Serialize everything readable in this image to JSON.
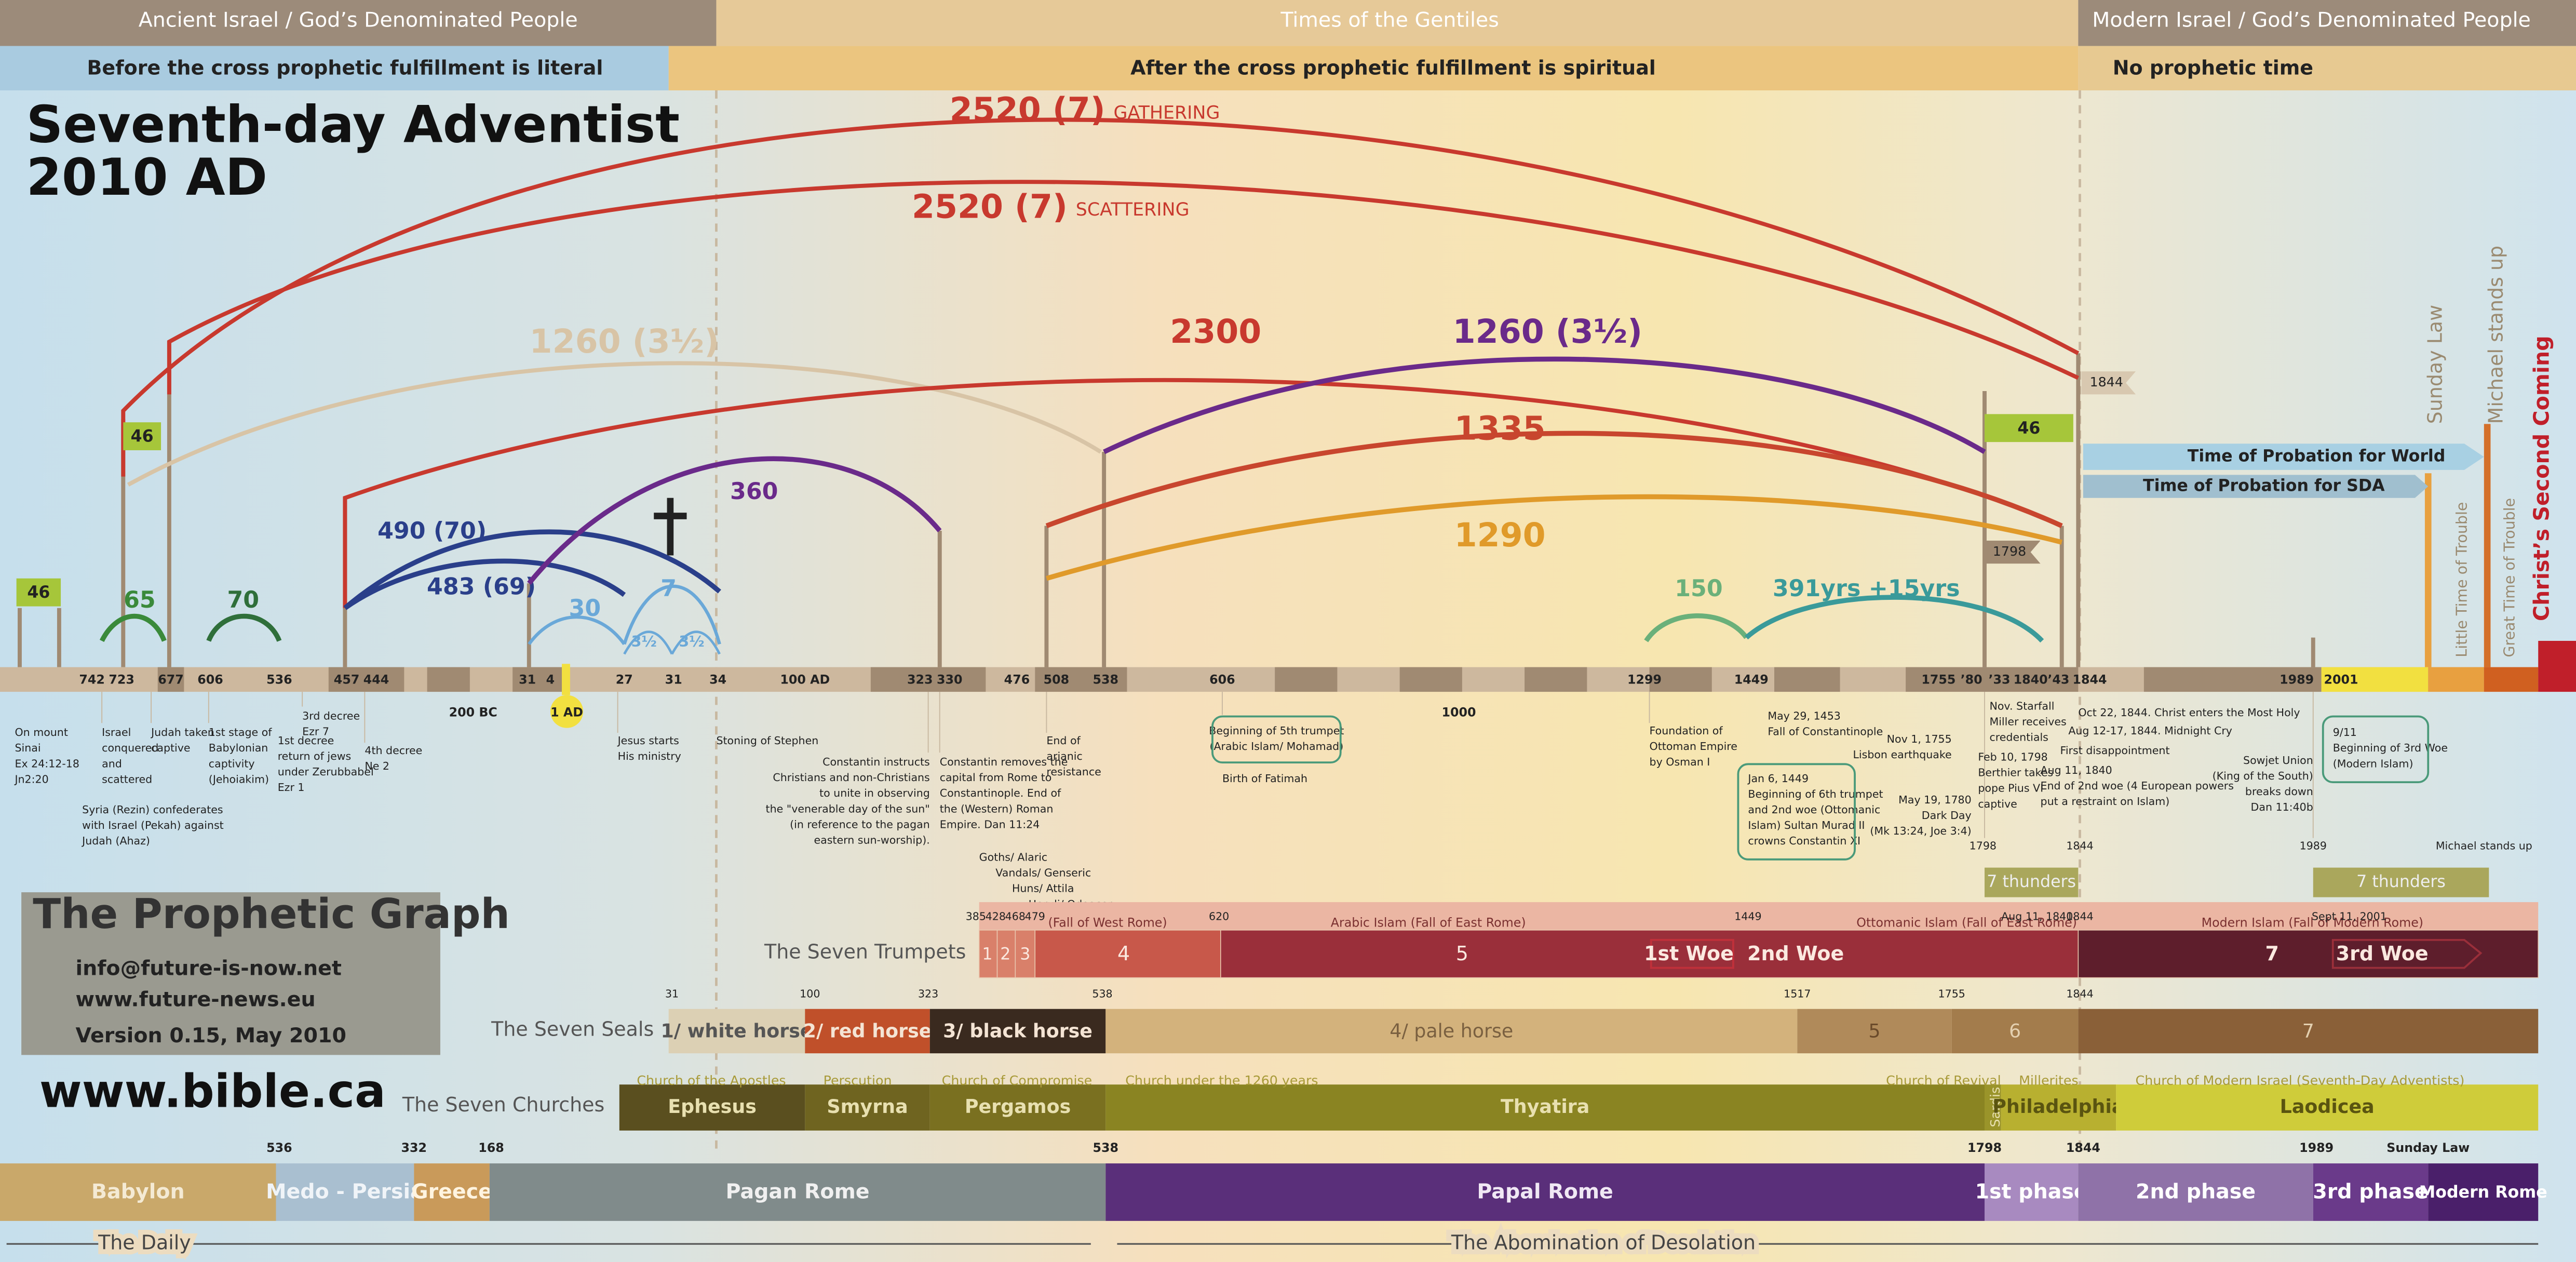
{
  "header": {
    "eras": [
      "Ancient Israel / God’s Denominated People",
      "Times of the Gentiles",
      "Modern Israel / God’s Denominated People"
    ],
    "fulfillment": [
      "Before the cross prophetic fulfillment is literal",
      "After the cross prophetic fulfillment is spiritual",
      "No prophetic time"
    ]
  },
  "title": [
    "Seventh-day Adventist",
    "2010 AD"
  ],
  "periods": [
    {
      "label": "2520 (7)",
      "note": "GATHERING"
    },
    {
      "label": "2520 (7)",
      "note": "SCATTERING"
    },
    {
      "label": "1260 (3½)"
    },
    {
      "label": "2300"
    },
    {
      "label": "1260  (3½)"
    },
    {
      "label": "1335"
    },
    {
      "label": "1290"
    },
    {
      "label": "490  (70)"
    },
    {
      "label": "483 (69)"
    },
    {
      "label": "360"
    },
    {
      "label": "30"
    },
    {
      "label": "7"
    },
    {
      "label": "3½"
    },
    {
      "label": "3½"
    },
    {
      "label": "65"
    },
    {
      "label": "70"
    },
    {
      "label": "150"
    },
    {
      "label": "391yrs +15yrs"
    }
  ],
  "boxes": [
    "46",
    "46",
    "46"
  ],
  "flags": [
    "1844",
    "1798"
  ],
  "probation": [
    "Time of Probation for World",
    "Time of Probation for SDA"
  ],
  "side_labels": [
    "Sunday Law",
    "Michael stands up",
    "Little Time of Trouble",
    "Great Time of Trouble",
    "Christ’s Second Coming"
  ],
  "timeline": {
    "years": [
      "742",
      "723",
      "677",
      "606",
      "536",
      "457",
      "444",
      "31",
      "4",
      "27",
      "31",
      "34",
      "100 AD",
      "323",
      "330",
      "476",
      "508",
      "538",
      "606",
      "1299",
      "1449",
      "1755",
      "’80",
      "’33",
      "1840",
      "’43",
      "1844",
      "1989",
      "2001"
    ],
    "below": [
      "200 BC",
      "1 AD",
      "1000"
    ]
  },
  "events": [
    [
      "On mount",
      "Sinai",
      "Ex 24:12-18",
      "Jn2:20"
    ],
    [
      "Israel",
      "conquered",
      "and",
      "scattered"
    ],
    [
      "Judah taken",
      "captive"
    ],
    [
      "1st stage of",
      "Babylonian",
      "captivity",
      "(Jehoiakim)"
    ],
    [
      "3rd decree",
      "Ezr 7"
    ],
    [
      "1st decree",
      "return of jews",
      "under Zerubbabel",
      "Ezr 1"
    ],
    [
      "4th decree",
      "Ne 2"
    ],
    [
      "Syria (Rezin) confederates",
      "with Israel (Pekah) against",
      "Judah (Ahaz)"
    ],
    [
      "Jesus starts",
      "His ministry"
    ],
    [
      "Stoning of Stephen"
    ],
    [
      "Constantin instructs",
      "Christians and non-Christians",
      "to unite in observing",
      "the \"venerable day of the sun\"",
      "(in reference to the pagan",
      "eastern sun-worship)."
    ],
    [
      "Constantin removes the",
      "capital from Rome to",
      "Constantinople. End of",
      "the (Western) Roman",
      "Empire. Dan 11:24"
    ],
    [
      "End of",
      "arianic",
      "resistance"
    ],
    [
      "Beginning of 5th trumpet",
      "(Arabic Islam/ Mohamad)"
    ],
    [
      "Birth of Fatimah"
    ],
    [
      "Foundation of",
      "Ottoman Empire",
      "by Osman I"
    ],
    [
      "May 29, 1453",
      "Fall of Constantinople"
    ],
    [
      "Jan 6, 1449",
      "Beginning of 6th trumpet",
      "and 2nd woe (Ottomanic",
      "Islam) Sultan Murad II",
      "crowns Constantin XI"
    ],
    [
      "Nov 1, 1755",
      "Lisbon earthquake"
    ],
    [
      "May 19, 1780",
      "Dark Day",
      "(Mk 13:24, Joe 3:4)"
    ],
    [
      "Nov. Starfall",
      "Miller receives",
      "credentials"
    ],
    [
      "Feb 10, 1798",
      "Berthier takes",
      "pope Pius VI",
      "captive"
    ],
    [
      "Aug 11, 1840",
      "End of 2nd woe (4 European powers",
      "put a restraint on Islam)"
    ],
    [
      "First disappointment"
    ],
    [
      "Aug 12-17, 1844. Midnight Cry"
    ],
    [
      "Oct 22, 1844. Christ enters the Most Holy"
    ],
    [
      "Sowjet Union",
      "(King of the South)",
      "breaks down",
      "Dan 11:40b"
    ],
    [
      "9/11",
      "Beginning of 3rd Woe",
      "(Modern Islam)"
    ],
    [
      "Goths/ Alaric",
      "Vandals/ Genseric",
      "Huns/ Attila",
      "Heruli/ Odoacer"
    ]
  ],
  "upper_years": [
    "1798",
    "1844",
    "1989",
    "Michael stands up"
  ],
  "thunders": [
    "7 thunders",
    "7 thunders"
  ],
  "graph_box": {
    "title": "The Prophetic Graph",
    "lines": [
      "info@future-is-now.net",
      "www.future-news.eu",
      "Version 0.15, May 2010"
    ]
  },
  "website": "www.bible.ca",
  "trumpets": {
    "label": "The Seven Trumpets",
    "years": [
      "385",
      "428",
      "468",
      "479",
      "620",
      "1449",
      "Aug 11, 1840",
      "1844",
      "Sept 11, 2001"
    ],
    "eras": [
      "(Fall of West Rome)",
      "Arabic Islam (Fall of East Rome)",
      "Ottomanic Islam (Fall of East Rome)",
      "Modern Islam (Fall of Modern Rome)"
    ],
    "segments": [
      "1",
      "2",
      "3",
      "4",
      "5",
      "1st Woe",
      "2nd Woe",
      "7",
      "3rd Woe"
    ]
  },
  "seals": {
    "label": "The Seven Seals",
    "years": [
      "31",
      "100",
      "323",
      "538",
      "1517",
      "1755",
      "1844"
    ],
    "segments": [
      "1/ white horse",
      "2/ red horse",
      "3/ black horse",
      "4/ pale horse",
      "5",
      "6",
      "7"
    ]
  },
  "churches": {
    "label": "The Seven Churches",
    "notes": [
      "Church of the Apostles",
      "Perscution",
      "Church of Compromise",
      "Church under the 1260 years",
      "Church of Revival",
      "Millerites",
      "Church of Modern Israel (Seventh-Day Adventists)"
    ],
    "segments": [
      "Ephesus",
      "Smyrna",
      "Pergamos",
      "Thyatira",
      "Sardis",
      "Philadelphia",
      "Laodicea"
    ]
  },
  "empires": {
    "years": [
      "536",
      "332",
      "168",
      "538",
      "1798",
      "1844",
      "1989",
      "Sunday Law"
    ],
    "segments": [
      "Babylon",
      "Medo - Persia",
      "Greece",
      "Pagan Rome",
      "Papal Rome",
      "1st phase",
      "2nd phase",
      "3rd phase",
      "Modern Rome"
    ]
  },
  "bottom": [
    "The Daily",
    "The Abomination of Desolation"
  ]
}
